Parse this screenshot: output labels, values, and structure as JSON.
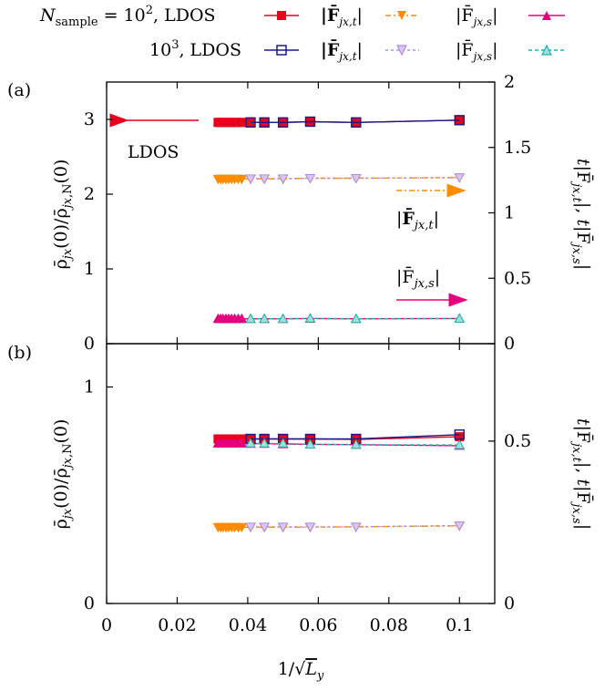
{
  "chart_data": [
    {
      "type": "line",
      "panel": "(a)",
      "xlabel": "1/√L_y",
      "ylabel": "ρ̄_jx(0)/ρ̄_jx,N(0)",
      "y2label": "t|F̄_jx,t|, t|F̄_jx,s|",
      "xlim": [
        0,
        0.11
      ],
      "ylim": [
        0,
        3.5
      ],
      "y2lim": [
        0,
        2
      ],
      "xticks": [
        "0",
        "0.02",
        "0.04",
        "0.06",
        "0.08",
        "0.1"
      ],
      "yticks": [
        "0",
        "1",
        "2",
        "3"
      ],
      "y2ticks": [
        "0",
        "0.5",
        "1",
        "1.5",
        "2"
      ],
      "annotations": [
        {
          "text": "LDOS",
          "arrow": "left"
        },
        {
          "text": "|F̄_jx,t|",
          "arrow": "right"
        },
        {
          "text": "|F̄_jx,s|",
          "arrow": "right"
        }
      ],
      "series": [
        {
          "name": "N_sample = 10², LDOS",
          "axis": "left",
          "color": "#e8001c",
          "x": [
            0.0316,
            0.0323,
            0.033,
            0.0338,
            0.0346,
            0.0354,
            0.0363,
            0.0373,
            0.0383,
            0.0408,
            0.0447,
            0.05,
            0.0577,
            0.0707,
            0.1
          ],
          "y": [
            2.96,
            2.96,
            2.96,
            2.96,
            2.96,
            2.96,
            2.96,
            2.96,
            2.96,
            2.96,
            2.96,
            2.96,
            2.97,
            2.96,
            2.99
          ]
        },
        {
          "name": "|F̄_jx,t|",
          "axis": "right",
          "color": "#ff8c00",
          "x": [
            0.0316,
            0.0323,
            0.033,
            0.0338,
            0.0346,
            0.0354,
            0.0363,
            0.0373,
            0.0383,
            0.0408,
            0.0447,
            0.05,
            0.0577,
            0.0707,
            0.1
          ],
          "y": [
            1.26,
            1.26,
            1.26,
            1.26,
            1.26,
            1.26,
            1.26,
            1.26,
            1.26,
            1.26,
            1.26,
            1.26,
            1.265,
            1.265,
            1.27
          ]
        },
        {
          "name": "|F̄_jx,s|",
          "axis": "right",
          "color": "#e6007e",
          "x": [
            0.0316,
            0.0323,
            0.033,
            0.0338,
            0.0346,
            0.0354,
            0.0363,
            0.0373,
            0.0383,
            0.0408,
            0.0447,
            0.05,
            0.0577,
            0.0707,
            0.1
          ],
          "y": [
            0.19,
            0.19,
            0.19,
            0.19,
            0.19,
            0.19,
            0.19,
            0.19,
            0.19,
            0.19,
            0.19,
            0.19,
            0.192,
            0.19,
            0.192
          ]
        },
        {
          "name": "10³, LDOS",
          "axis": "left",
          "color": "#1a1a8c",
          "x": [
            0.0408,
            0.0447,
            0.05,
            0.0577,
            0.0707,
            0.1
          ],
          "y": [
            2.96,
            2.96,
            2.96,
            2.97,
            2.96,
            2.99
          ]
        },
        {
          "name": "|F̄_jx,t|",
          "axis": "right",
          "color": "#b08ce0",
          "x": [
            0.0408,
            0.0447,
            0.05,
            0.0577,
            0.0707,
            0.1
          ],
          "y": [
            1.262,
            1.262,
            1.262,
            1.265,
            1.265,
            1.27
          ]
        },
        {
          "name": "|F̄_jx,s|",
          "axis": "right",
          "color": "#20b2aa",
          "x": [
            0.0408,
            0.0447,
            0.05,
            0.0577,
            0.0707,
            0.1
          ],
          "y": [
            0.19,
            0.19,
            0.19,
            0.193,
            0.19,
            0.192
          ]
        }
      ]
    },
    {
      "type": "line",
      "panel": "(b)",
      "xlabel": "1/√L_y",
      "ylabel": "ρ̄_jx(0)/ρ̄_jx,N(0)",
      "y2label": "t|F̄_jx,t|, t|F̄_jx,s|",
      "xlim": [
        0,
        0.11
      ],
      "ylim": [
        0,
        1.2
      ],
      "y2lim": [
        0,
        0.8
      ],
      "xticks": [
        "0",
        "0.02",
        "0.04",
        "0.06",
        "0.08",
        "0.1"
      ],
      "yticks": [
        "0",
        "1"
      ],
      "y2ticks": [
        "0",
        "0.5"
      ],
      "series": [
        {
          "name": "N_sample = 10², LDOS",
          "axis": "left",
          "color": "#e8001c",
          "x": [
            0.0316,
            0.0323,
            0.033,
            0.0338,
            0.0346,
            0.0354,
            0.0363,
            0.0373,
            0.0383,
            0.0408,
            0.0447,
            0.05,
            0.0577,
            0.0707,
            0.1
          ],
          "y": [
            0.76,
            0.76,
            0.76,
            0.76,
            0.76,
            0.76,
            0.76,
            0.76,
            0.76,
            0.76,
            0.76,
            0.76,
            0.76,
            0.758,
            0.77
          ]
        },
        {
          "name": "|F̄_jx,t|",
          "axis": "right",
          "color": "#ff8c00",
          "x": [
            0.0316,
            0.0323,
            0.033,
            0.0338,
            0.0346,
            0.0354,
            0.0363,
            0.0373,
            0.0383,
            0.0408,
            0.0447,
            0.05,
            0.0577,
            0.0707,
            0.1
          ],
          "y": [
            0.235,
            0.235,
            0.235,
            0.235,
            0.235,
            0.235,
            0.235,
            0.235,
            0.235,
            0.235,
            0.235,
            0.235,
            0.235,
            0.236,
            0.239
          ]
        },
        {
          "name": "|F̄_jx,s|",
          "axis": "right",
          "color": "#e6007e",
          "x": [
            0.0316,
            0.0323,
            0.033,
            0.0338,
            0.0346,
            0.0354,
            0.0363,
            0.0373,
            0.0383,
            0.0408,
            0.0447,
            0.05,
            0.0577,
            0.0707,
            0.1
          ],
          "y": [
            0.493,
            0.493,
            0.493,
            0.493,
            0.493,
            0.493,
            0.493,
            0.493,
            0.493,
            0.492,
            0.492,
            0.491,
            0.49,
            0.489,
            0.486
          ]
        },
        {
          "name": "10³, LDOS",
          "axis": "left",
          "color": "#1a1a8c",
          "x": [
            0.0408,
            0.0447,
            0.05,
            0.0577,
            0.0707,
            0.1
          ],
          "y": [
            0.76,
            0.76,
            0.76,
            0.76,
            0.76,
            0.78
          ]
        },
        {
          "name": "|F̄_jx,t|",
          "axis": "right",
          "color": "#b08ce0",
          "x": [
            0.0408,
            0.0447,
            0.05,
            0.0577,
            0.0707,
            0.1
          ],
          "y": [
            0.236,
            0.236,
            0.236,
            0.236,
            0.236,
            0.24
          ]
        },
        {
          "name": "|F̄_jx,s|",
          "axis": "right",
          "color": "#20b2aa",
          "x": [
            0.0408,
            0.0447,
            0.05,
            0.0577,
            0.0707,
            0.1
          ],
          "y": [
            0.493,
            0.493,
            0.493,
            0.49,
            0.489,
            0.488
          ]
        }
      ]
    }
  ],
  "legend": {
    "row1": {
      "prefix": "N",
      "subscript": "sample",
      "value": " = 10",
      "power": "2",
      "suffix": ", LDOS",
      "t_label": "|F̄",
      "t_sub": "jx,t",
      "s_label": "|F̄",
      "s_sub": "jx,s"
    },
    "row2": {
      "prefix": "10",
      "power": "3",
      "suffix": ", LDOS",
      "t_label": "|F̄",
      "t_sub": "jx,t",
      "s_label": "|F̄",
      "s_sub": "jx,s"
    }
  },
  "panel_labels": [
    "(a)",
    "(b)"
  ],
  "annotation_text": {
    "ldos": "LDOS"
  }
}
